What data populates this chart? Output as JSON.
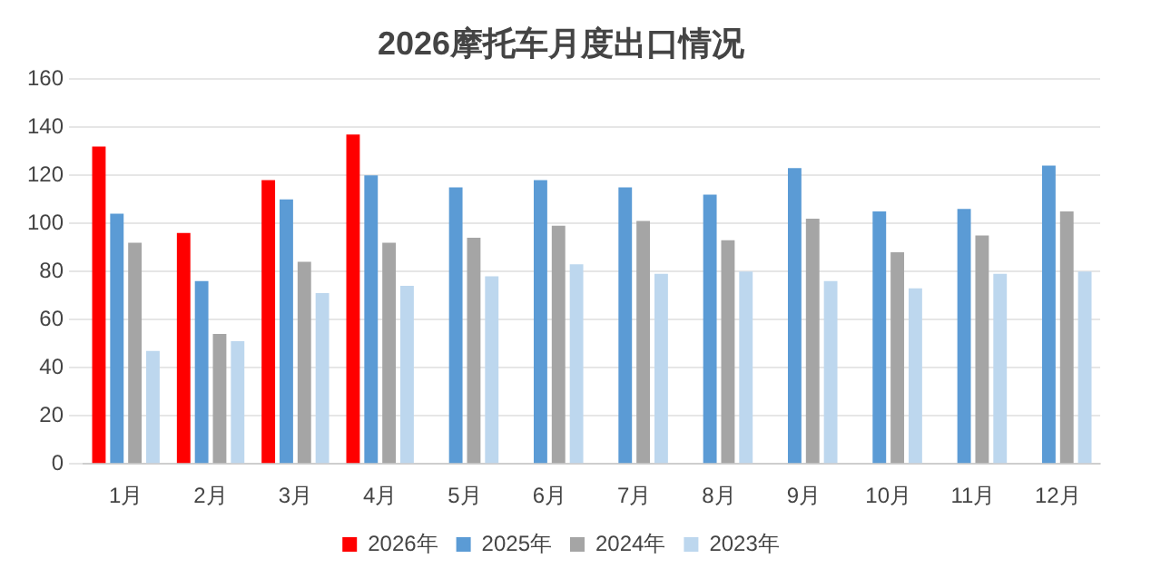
{
  "chart_data": {
    "type": "bar",
    "title": "2026摩托车月度出口情况",
    "categories": [
      "1月",
      "2月",
      "3月",
      "4月",
      "5月",
      "6月",
      "7月",
      "8月",
      "9月",
      "10月",
      "11月",
      "12月"
    ],
    "series": [
      {
        "name": "2026年",
        "color": "#ff0000",
        "values": [
          132,
          96,
          118,
          137,
          null,
          null,
          null,
          null,
          null,
          null,
          null,
          null
        ]
      },
      {
        "name": "2025年",
        "color": "#5b9bd5",
        "values": [
          104,
          76,
          110,
          120,
          115,
          118,
          115,
          112,
          123,
          105,
          106,
          124
        ]
      },
      {
        "name": "2024年",
        "color": "#a5a5a5",
        "values": [
          92,
          54,
          84,
          92,
          94,
          99,
          101,
          93,
          102,
          88,
          95,
          105
        ]
      },
      {
        "name": "2023年",
        "color": "#bdd7ee",
        "values": [
          47,
          51,
          71,
          74,
          78,
          83,
          79,
          80,
          76,
          73,
          79,
          80
        ]
      }
    ],
    "ylim": [
      0,
      160
    ],
    "yticks": [
      0,
      20,
      40,
      60,
      80,
      100,
      120,
      140,
      160
    ],
    "grid": "y",
    "legend": "bottom"
  }
}
